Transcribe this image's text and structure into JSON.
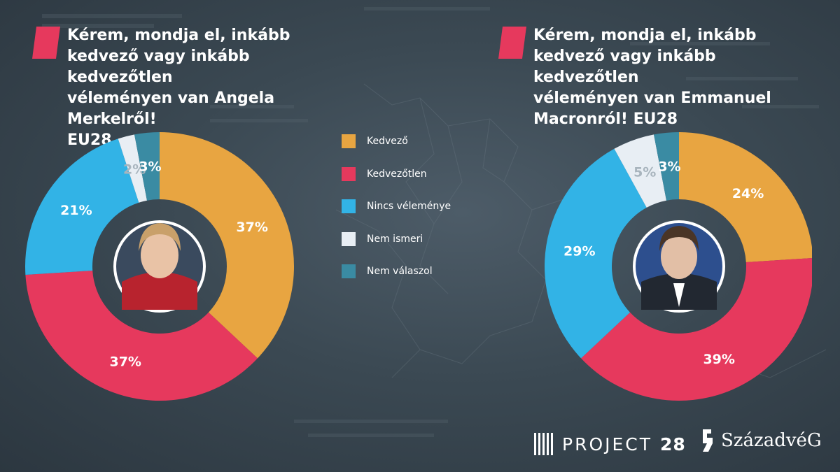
{
  "colors": {
    "kedvezo": "#e8a541",
    "kedvezotlen": "#e6395d",
    "nincs_velemenye": "#32b3e6",
    "nem_ismeri": "#e8eef4",
    "nem_valaszol": "#3a8ba3",
    "marker": "#e6395d",
    "text_on_light": "#a8b4bd"
  },
  "chart_data": [
    {
      "type": "pie",
      "title": "Kérem, mondja el, inkább\nkedvező vagy inkább kedvezőtlen\nvéleményen van Angela Merkelről!\nEU28",
      "categories": [
        "Kedvező",
        "Kedvezőtlen",
        "Nincs véleménye",
        "Nem ismeri",
        "Nem válaszol"
      ],
      "values": [
        37,
        37,
        21,
        2,
        3
      ],
      "labels": [
        "37%",
        "37%",
        "21%",
        "2%",
        "3%"
      ],
      "legend": "center"
    },
    {
      "type": "pie",
      "title": "Kérem, mondja el, inkább\nkedvező vagy inkább kedvezőtlen\nvéleményen van Emmanuel\nMacronról! EU28",
      "categories": [
        "Kedvező",
        "Kedvezőtlen",
        "Nincs véleménye",
        "Nem ismeri",
        "Nem válaszol"
      ],
      "values": [
        24,
        39,
        29,
        5,
        3
      ],
      "labels": [
        "24%",
        "39%",
        "29%",
        "5%",
        "3%"
      ],
      "legend": "center"
    }
  ],
  "legend": [
    {
      "label": "Kedvező",
      "color_key": "kedvezo"
    },
    {
      "label": "Kedvezőtlen",
      "color_key": "kedvezotlen"
    },
    {
      "label": "Nincs véleménye",
      "color_key": "nincs_velemenye"
    },
    {
      "label": "Nem ismeri",
      "color_key": "nem_ismeri"
    },
    {
      "label": "Nem válaszol",
      "color_key": "nem_valaszol"
    }
  ],
  "footer": {
    "logo1_text": "PROJECT",
    "logo1_number": "28",
    "logo2_text": "SzázadvéG"
  }
}
